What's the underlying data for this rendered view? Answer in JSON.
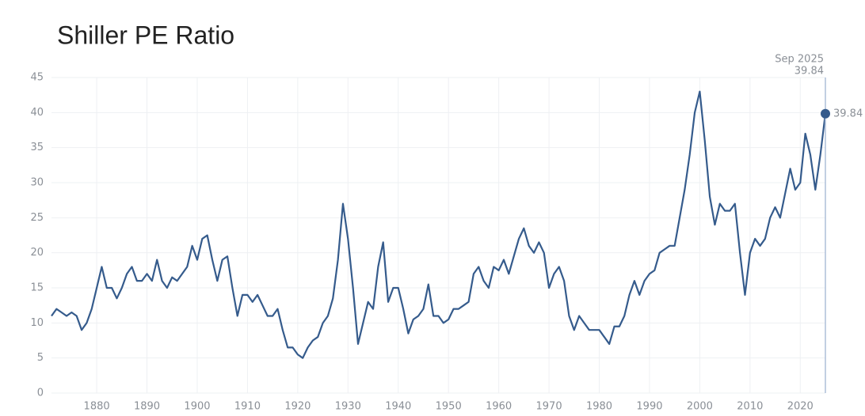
{
  "chart_data": {
    "type": "line",
    "title": "Shiller PE Ratio",
    "x": [
      1871,
      1872,
      1873,
      1874,
      1875,
      1876,
      1877,
      1878,
      1879,
      1880,
      1881,
      1882,
      1883,
      1884,
      1885,
      1886,
      1887,
      1888,
      1889,
      1890,
      1891,
      1892,
      1893,
      1894,
      1895,
      1896,
      1897,
      1898,
      1899,
      1900,
      1901,
      1902,
      1903,
      1904,
      1905,
      1906,
      1907,
      1908,
      1909,
      1910,
      1911,
      1912,
      1913,
      1914,
      1915,
      1916,
      1917,
      1918,
      1919,
      1920,
      1921,
      1922,
      1923,
      1924,
      1925,
      1926,
      1927,
      1928,
      1929,
      1930,
      1931,
      1932,
      1933,
      1934,
      1935,
      1936,
      1937,
      1938,
      1939,
      1940,
      1941,
      1942,
      1943,
      1944,
      1945,
      1946,
      1947,
      1948,
      1949,
      1950,
      1951,
      1952,
      1953,
      1954,
      1955,
      1956,
      1957,
      1958,
      1959,
      1960,
      1961,
      1962,
      1963,
      1964,
      1965,
      1966,
      1967,
      1968,
      1969,
      1970,
      1971,
      1972,
      1973,
      1974,
      1975,
      1976,
      1977,
      1978,
      1979,
      1980,
      1981,
      1982,
      1983,
      1984,
      1985,
      1986,
      1987,
      1988,
      1989,
      1990,
      1991,
      1992,
      1993,
      1994,
      1995,
      1996,
      1997,
      1998,
      1999,
      2000,
      2001,
      2002,
      2003,
      2004,
      2005,
      2006,
      2007,
      2008,
      2009,
      2010,
      2011,
      2012,
      2013,
      2014,
      2015,
      2016,
      2017,
      2018,
      2019,
      2020,
      2021,
      2022,
      2023,
      2024,
      2025
    ],
    "series": [
      {
        "name": "Shiller PE Ratio",
        "color": "#355b8c",
        "values": [
          11,
          12,
          11.5,
          11,
          11.5,
          11,
          9,
          10,
          12,
          15,
          18,
          15,
          15,
          13.5,
          15,
          17,
          18,
          16,
          16,
          17,
          16,
          19,
          16,
          15,
          16.5,
          16,
          17,
          18,
          21,
          19,
          22,
          22.5,
          19,
          16,
          19,
          19.5,
          15,
          11,
          14,
          14,
          13,
          14,
          12.5,
          11,
          11,
          12,
          9,
          6.5,
          6.5,
          5.5,
          5,
          6.5,
          7.5,
          8,
          10,
          11,
          13.5,
          19,
          27,
          22,
          15,
          7,
          10,
          13,
          12,
          18,
          21.5,
          13,
          15,
          15,
          12,
          8.5,
          10.5,
          11,
          12,
          15.5,
          11,
          11,
          10,
          10.5,
          12,
          12,
          12.5,
          13,
          17,
          18,
          16,
          15,
          18,
          17.5,
          19,
          17,
          19.5,
          22,
          23.5,
          21,
          20,
          21.5,
          20,
          15,
          17,
          18,
          16,
          11,
          9,
          11,
          10,
          9,
          9,
          9,
          8,
          7,
          9.5,
          9.5,
          11,
          14,
          16,
          14,
          16,
          17,
          17.5,
          20,
          20.5,
          21,
          21,
          25,
          29,
          34,
          40,
          43,
          36,
          28,
          24,
          27,
          26,
          26,
          27,
          20,
          14,
          20,
          22,
          21,
          22,
          25,
          26.5,
          25,
          28.5,
          32,
          29,
          30,
          37,
          34,
          29,
          34,
          39.84
        ]
      }
    ],
    "annotation": "Sep 2025",
    "xlim": [
      1871,
      2025
    ],
    "xticks": [
      1880,
      1890,
      1900,
      1910,
      1920,
      1930,
      1940,
      1950,
      1960,
      1970,
      1980,
      1990,
      2000,
      2010,
      2020
    ],
    "ylim": [
      0,
      45
    ],
    "yticks": [
      0,
      5,
      10,
      15,
      20,
      25,
      30,
      35,
      40,
      45
    ],
    "grid": true
  }
}
